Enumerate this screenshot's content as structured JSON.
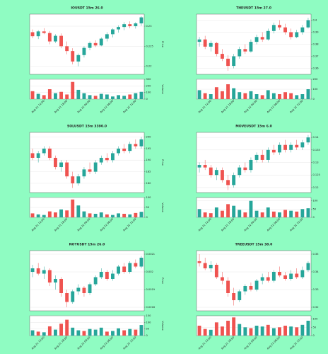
{
  "chart_data": [
    {
      "type": "candlestick",
      "title": "IOUSDT 15m 26.0",
      "ylabel": "Price",
      "vlabel": "Volume",
      "up_color": "#26a69a",
      "down_color": "#ef5350",
      "grid": true,
      "x": [
        null,
        null,
        "Aug 21 12:00",
        null,
        null,
        null,
        "Aug 21 18:00",
        null,
        null,
        null,
        "Aug 22 00:00",
        null,
        null,
        null,
        "Aug 22 06:00",
        null,
        null,
        null,
        "Aug 22 12:00",
        null
      ],
      "ohlc": [
        [
          0.2285,
          0.2292,
          0.227,
          0.2275
        ],
        [
          0.2275,
          0.229,
          0.2268,
          0.2287
        ],
        [
          0.2287,
          0.2295,
          0.228,
          0.2283
        ],
        [
          0.2283,
          0.2288,
          0.2255,
          0.2262
        ],
        [
          0.2262,
          0.228,
          0.2258,
          0.2276
        ],
        [
          0.2276,
          0.2282,
          0.2245,
          0.225
        ],
        [
          0.225,
          0.2262,
          0.223,
          0.2238
        ],
        [
          0.2238,
          0.2245,
          0.2205,
          0.2212
        ],
        [
          0.2212,
          0.2232,
          0.22,
          0.2228
        ],
        [
          0.2228,
          0.225,
          0.2222,
          0.2246
        ],
        [
          0.2246,
          0.2262,
          0.224,
          0.2258
        ],
        [
          0.2258,
          0.2265,
          0.2248,
          0.2252
        ],
        [
          0.2252,
          0.2272,
          0.225,
          0.2269
        ],
        [
          0.2269,
          0.2285,
          0.2262,
          0.228
        ],
        [
          0.228,
          0.2295,
          0.2272,
          0.2292
        ],
        [
          0.2292,
          0.2302,
          0.2284,
          0.2298
        ],
        [
          0.2298,
          0.231,
          0.229,
          0.2305
        ],
        [
          0.2305,
          0.2312,
          0.2295,
          0.23
        ],
        [
          0.23,
          0.231,
          0.2294,
          0.2307
        ],
        [
          0.2307,
          0.2325,
          0.2301,
          0.2322
        ]
      ],
      "volume": [
        120,
        80,
        60,
        150,
        90,
        110,
        70,
        260,
        140,
        90,
        60,
        50,
        80,
        70,
        40,
        60,
        50,
        70,
        90,
        110
      ],
      "ylim": [
        0.218,
        0.233
      ],
      "yticks": [
        0.22,
        0.225,
        0.23
      ],
      "vlim": [
        0,
        300
      ],
      "vticks": [
        0,
        100,
        200,
        300
      ]
    },
    {
      "type": "candlestick",
      "title": "THEUSDT 15m 27.0",
      "ylabel": "Price",
      "vlabel": "Volume",
      "up_color": "#26a69a",
      "down_color": "#ef5350",
      "grid": true,
      "x": [
        null,
        null,
        "Aug 21 12:00",
        null,
        null,
        null,
        "Aug 21 18:00",
        null,
        null,
        null,
        "Aug 22 00:00",
        null,
        null,
        null,
        "Aug 22 06:00",
        null,
        null,
        null,
        "Aug 22 12:00",
        null
      ],
      "ohlc": [
        [
          0.382,
          0.386,
          0.378,
          0.384
        ],
        [
          0.384,
          0.387,
          0.376,
          0.378
        ],
        [
          0.378,
          0.383,
          0.374,
          0.381
        ],
        [
          0.381,
          0.382,
          0.37,
          0.372
        ],
        [
          0.372,
          0.376,
          0.366,
          0.368
        ],
        [
          0.368,
          0.371,
          0.358,
          0.362
        ],
        [
          0.362,
          0.372,
          0.36,
          0.37
        ],
        [
          0.37,
          0.378,
          0.368,
          0.376
        ],
        [
          0.376,
          0.38,
          0.372,
          0.374
        ],
        [
          0.374,
          0.384,
          0.373,
          0.382
        ],
        [
          0.382,
          0.388,
          0.38,
          0.386
        ],
        [
          0.386,
          0.39,
          0.382,
          0.384
        ],
        [
          0.384,
          0.393,
          0.383,
          0.391
        ],
        [
          0.391,
          0.398,
          0.389,
          0.396
        ],
        [
          0.396,
          0.4,
          0.392,
          0.394
        ],
        [
          0.394,
          0.397,
          0.388,
          0.39
        ],
        [
          0.39,
          0.393,
          0.384,
          0.386
        ],
        [
          0.386,
          0.392,
          0.385,
          0.39
        ],
        [
          0.39,
          0.396,
          0.388,
          0.394
        ],
        [
          0.394,
          0.402,
          0.393,
          0.4
        ]
      ],
      "volume": [
        90,
        60,
        50,
        120,
        80,
        150,
        110,
        70,
        60,
        80,
        50,
        40,
        90,
        60,
        50,
        70,
        60,
        40,
        50,
        100
      ],
      "ylim": [
        0.355,
        0.405
      ],
      "yticks": [
        0.36,
        0.37,
        0.38,
        0.39,
        0.4
      ],
      "vlim": [
        0,
        200
      ],
      "vticks": [
        0,
        100,
        200
      ]
    },
    {
      "type": "candlestick",
      "title": "SOLUSDT 15m 3390.0",
      "ylabel": "Price",
      "vlabel": "Volume",
      "up_color": "#26a69a",
      "down_color": "#ef5350",
      "grid": true,
      "x": [
        null,
        null,
        "Aug 21 12:00",
        null,
        null,
        null,
        "Aug 21 18:00",
        null,
        null,
        null,
        "Aug 22 00:00",
        null,
        null,
        null,
        "Aug 22 06:00",
        null,
        null,
        null,
        "Aug 22 12:00",
        null
      ],
      "ohlc": [
        [
          193,
          195,
          190,
          191
        ],
        [
          191,
          194,
          189,
          193
        ],
        [
          193,
          196,
          192,
          195
        ],
        [
          195,
          196,
          190,
          191
        ],
        [
          191,
          192,
          186,
          187
        ],
        [
          187,
          190,
          185,
          189
        ],
        [
          189,
          190,
          182,
          183
        ],
        [
          183,
          185,
          178,
          180
        ],
        [
          180,
          184,
          179,
          183
        ],
        [
          183,
          187,
          182,
          186
        ],
        [
          186,
          189,
          184,
          185
        ],
        [
          185,
          190,
          184,
          189
        ],
        [
          189,
          192,
          188,
          191
        ],
        [
          191,
          193,
          189,
          190
        ],
        [
          190,
          194,
          189,
          193
        ],
        [
          193,
          196,
          192,
          195
        ],
        [
          195,
          197,
          193,
          194
        ],
        [
          194,
          198,
          193,
          197
        ],
        [
          197,
          199,
          195,
          196
        ],
        [
          196,
          200,
          195,
          199
        ]
      ],
      "volume": [
        20,
        15,
        12,
        30,
        25,
        40,
        35,
        90,
        60,
        30,
        20,
        18,
        25,
        15,
        12,
        20,
        18,
        15,
        22,
        28
      ],
      "ylim": [
        176,
        202
      ],
      "yticks": [
        180,
        185,
        190,
        195,
        200
      ],
      "vlim": [
        0,
        100
      ],
      "vticks": [
        0,
        50,
        100
      ]
    },
    {
      "type": "candlestick",
      "title": "MOVEUSDT 15m 6.0",
      "ylabel": "Price",
      "vlabel": "Volume",
      "up_color": "#26a69a",
      "down_color": "#ef5350",
      "grid": true,
      "x": [
        null,
        null,
        "Aug 21 12:00",
        null,
        null,
        null,
        "Aug 21 18:00",
        null,
        null,
        null,
        "Aug 22 00:00",
        null,
        null,
        null,
        "Aug 22 06:00",
        null,
        null,
        null,
        "Aug 22 12:00",
        null
      ],
      "ohlc": [
        [
          0.128,
          0.13,
          0.126,
          0.129
        ],
        [
          0.129,
          0.131,
          0.127,
          0.128
        ],
        [
          0.128,
          0.129,
          0.124,
          0.125
        ],
        [
          0.125,
          0.128,
          0.123,
          0.127
        ],
        [
          0.127,
          0.128,
          0.122,
          0.123
        ],
        [
          0.123,
          0.125,
          0.119,
          0.121
        ],
        [
          0.121,
          0.126,
          0.12,
          0.125
        ],
        [
          0.125,
          0.129,
          0.124,
          0.128
        ],
        [
          0.128,
          0.13,
          0.126,
          0.127
        ],
        [
          0.127,
          0.132,
          0.126,
          0.131
        ],
        [
          0.131,
          0.134,
          0.13,
          0.133
        ],
        [
          0.133,
          0.135,
          0.13,
          0.131
        ],
        [
          0.131,
          0.136,
          0.13,
          0.135
        ],
        [
          0.135,
          0.137,
          0.133,
          0.134
        ],
        [
          0.134,
          0.138,
          0.133,
          0.137
        ],
        [
          0.137,
          0.139,
          0.134,
          0.135
        ],
        [
          0.135,
          0.138,
          0.134,
          0.137
        ],
        [
          0.137,
          0.139,
          0.135,
          0.136
        ],
        [
          0.136,
          0.139,
          0.135,
          0.138
        ],
        [
          0.138,
          0.141,
          0.137,
          0.14
        ]
      ],
      "volume": [
        50,
        30,
        25,
        60,
        40,
        80,
        70,
        45,
        30,
        100,
        40,
        30,
        60,
        35,
        30,
        45,
        40,
        35,
        50,
        55
      ],
      "ylim": [
        0.118,
        0.142
      ],
      "yticks": [
        0.12,
        0.125,
        0.13,
        0.135,
        0.14
      ],
      "vlim": [
        0,
        120
      ],
      "vticks": [
        0,
        50,
        100
      ]
    },
    {
      "type": "candlestick",
      "title": "NOTUSDT 15m 26.0",
      "ylabel": "Price",
      "vlabel": "Volume",
      "up_color": "#26a69a",
      "down_color": "#ef5350",
      "grid": true,
      "x": [
        null,
        null,
        "Aug 21 12:00",
        null,
        null,
        null,
        "Aug 21 18:00",
        null,
        null,
        null,
        "Aug 22 00:00",
        null,
        null,
        null,
        "Aug 22 06:00",
        null,
        null,
        null,
        "Aug 22 12:00",
        null
      ],
      "ohlc": [
        [
          0.002,
          0.00204,
          0.00197,
          0.00202
        ],
        [
          0.00202,
          0.00205,
          0.00198,
          0.00199
        ],
        [
          0.00199,
          0.00203,
          0.00196,
          0.00201
        ],
        [
          0.00201,
          0.00202,
          0.00192,
          0.00194
        ],
        [
          0.00194,
          0.00198,
          0.0019,
          0.00196
        ],
        [
          0.00196,
          0.00197,
          0.00186,
          0.00188
        ],
        [
          0.00188,
          0.0019,
          0.0018,
          0.00183
        ],
        [
          0.00183,
          0.0019,
          0.00182,
          0.00189
        ],
        [
          0.00189,
          0.00193,
          0.00187,
          0.00191
        ],
        [
          0.00191,
          0.00192,
          0.00186,
          0.00188
        ],
        [
          0.00188,
          0.00194,
          0.00187,
          0.00193
        ],
        [
          0.00193,
          0.00198,
          0.00192,
          0.00197
        ],
        [
          0.00197,
          0.00202,
          0.00196,
          0.002
        ],
        [
          0.002,
          0.00201,
          0.00195,
          0.00196
        ],
        [
          0.00196,
          0.00201,
          0.00195,
          0.00199
        ],
        [
          0.00199,
          0.00204,
          0.00198,
          0.00203
        ],
        [
          0.00203,
          0.00205,
          0.00199,
          0.002
        ],
        [
          0.002,
          0.00206,
          0.00199,
          0.00205
        ],
        [
          0.00205,
          0.00207,
          0.00202,
          0.00203
        ],
        [
          0.00203,
          0.00209,
          0.00202,
          0.00208
        ]
      ],
      "volume": [
        40,
        30,
        25,
        70,
        45,
        90,
        120,
        60,
        40,
        35,
        50,
        45,
        60,
        30,
        35,
        55,
        40,
        50,
        45,
        80
      ],
      "ylim": [
        0.00178,
        0.00212
      ],
      "yticks": [
        0.0018,
        0.0019,
        0.002,
        0.0021
      ],
      "vlim": [
        0,
        150
      ],
      "vticks": [
        0,
        50,
        100,
        150
      ]
    },
    {
      "type": "candlestick",
      "title": "TREEUSDT 15m 38.0",
      "ylabel": "Price",
      "vlabel": "Volume",
      "up_color": "#26a69a",
      "down_color": "#ef5350",
      "grid": true,
      "x": [
        null,
        null,
        "Aug 21 12:00",
        null,
        null,
        null,
        "Aug 21 18:00",
        null,
        null,
        null,
        "Aug 22 00:00",
        null,
        null,
        null,
        "Aug 22 06:00",
        null,
        null,
        null,
        "Aug 22 12:00",
        null
      ],
      "ohlc": [
        [
          0.346,
          0.35,
          0.343,
          0.345
        ],
        [
          0.345,
          0.348,
          0.341,
          0.342
        ],
        [
          0.342,
          0.346,
          0.34,
          0.344
        ],
        [
          0.344,
          0.345,
          0.336,
          0.337
        ],
        [
          0.337,
          0.34,
          0.333,
          0.335
        ],
        [
          0.335,
          0.337,
          0.326,
          0.328
        ],
        [
          0.328,
          0.331,
          0.321,
          0.324
        ],
        [
          0.324,
          0.33,
          0.323,
          0.329
        ],
        [
          0.329,
          0.333,
          0.327,
          0.332
        ],
        [
          0.332,
          0.334,
          0.329,
          0.33
        ],
        [
          0.33,
          0.336,
          0.329,
          0.335
        ],
        [
          0.335,
          0.339,
          0.333,
          0.337
        ],
        [
          0.337,
          0.34,
          0.334,
          0.335
        ],
        [
          0.335,
          0.341,
          0.334,
          0.34
        ],
        [
          0.34,
          0.343,
          0.337,
          0.338
        ],
        [
          0.338,
          0.34,
          0.335,
          0.336
        ],
        [
          0.336,
          0.341,
          0.335,
          0.339
        ],
        [
          0.339,
          0.342,
          0.336,
          0.337
        ],
        [
          0.337,
          0.343,
          0.336,
          0.341
        ],
        [
          0.341,
          0.346,
          0.34,
          0.345
        ]
      ],
      "volume": [
        60,
        40,
        35,
        80,
        55,
        90,
        110,
        70,
        50,
        45,
        60,
        55,
        65,
        45,
        50,
        60,
        55,
        50,
        65,
        90
      ],
      "ylim": [
        0.318,
        0.352
      ],
      "yticks": [
        0.32,
        0.33,
        0.34,
        0.35
      ],
      "vlim": [
        0,
        120
      ],
      "vticks": [
        0,
        50,
        100
      ]
    }
  ]
}
